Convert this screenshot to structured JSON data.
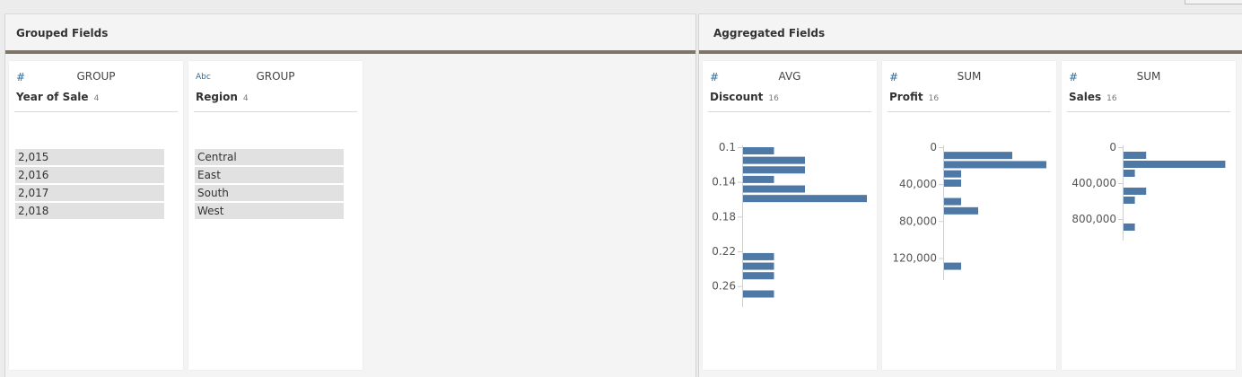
{
  "sections": [
    {
      "title": "Grouped Fields",
      "fields": [
        {
          "type_icon": "#",
          "type_icon_name": "number-icon",
          "aggregation": "GROUP",
          "name": "Year of Sale",
          "count": "4",
          "values": [
            "2,015",
            "2,016",
            "2,017",
            "2,018"
          ]
        },
        {
          "type_icon": "Abc",
          "type_icon_name": "string-icon",
          "aggregation": "GROUP",
          "name": "Region",
          "count": "4",
          "values": [
            "Central",
            "East",
            "South",
            "West"
          ]
        }
      ]
    },
    {
      "title": "Aggregated Fields",
      "fields": [
        {
          "type_icon": "#",
          "type_icon_name": "number-icon",
          "aggregation": "AVG",
          "name": "Discount",
          "count": "16"
        },
        {
          "type_icon": "#",
          "type_icon_name": "number-icon",
          "aggregation": "SUM",
          "name": "Profit",
          "count": "16"
        },
        {
          "type_icon": "#",
          "type_icon_name": "number-icon",
          "aggregation": "SUM",
          "name": "Sales",
          "count": "16"
        }
      ]
    }
  ],
  "chart_data": [
    {
      "type": "bar",
      "field": "Discount",
      "orientation": "horizontal",
      "axis_labels": [
        "0.1",
        "0.14",
        "0.18",
        "0.22",
        "0.26"
      ],
      "ylim": [
        0.1,
        0.28
      ],
      "bars": [
        {
          "y": 0.1,
          "count": 1
        },
        {
          "y": 0.111,
          "count": 2
        },
        {
          "y": 0.122,
          "count": 2
        },
        {
          "y": 0.133,
          "count": 1
        },
        {
          "y": 0.144,
          "count": 2
        },
        {
          "y": 0.155,
          "count": 4
        },
        {
          "y": 0.222,
          "count": 1
        },
        {
          "y": 0.233,
          "count": 1
        },
        {
          "y": 0.244,
          "count": 1
        },
        {
          "y": 0.265,
          "count": 1
        }
      ],
      "bar_color": "#4e79a7"
    },
    {
      "type": "bar",
      "field": "Profit",
      "orientation": "horizontal",
      "axis_labels": [
        "0",
        "40,000",
        "80,000",
        "120,000"
      ],
      "ylim": [
        0,
        140000
      ],
      "bars": [
        {
          "y": 5000,
          "count": 4
        },
        {
          "y": 15000,
          "count": 6
        },
        {
          "y": 25000,
          "count": 1
        },
        {
          "y": 35000,
          "count": 1
        },
        {
          "y": 55000,
          "count": 1
        },
        {
          "y": 65000,
          "count": 2
        },
        {
          "y": 125000,
          "count": 1
        }
      ],
      "bar_color": "#4e79a7"
    },
    {
      "type": "bar",
      "field": "Sales",
      "orientation": "horizontal",
      "axis_labels": [
        "0",
        "400,000",
        "800,000"
      ],
      "ylim": [
        0,
        1000000
      ],
      "bars": [
        {
          "y": 50000,
          "count": 2
        },
        {
          "y": 150000,
          "count": 9
        },
        {
          "y": 250000,
          "count": 1
        },
        {
          "y": 450000,
          "count": 2
        },
        {
          "y": 550000,
          "count": 1
        },
        {
          "y": 850000,
          "count": 1
        }
      ],
      "bar_color": "#4e79a7"
    }
  ]
}
